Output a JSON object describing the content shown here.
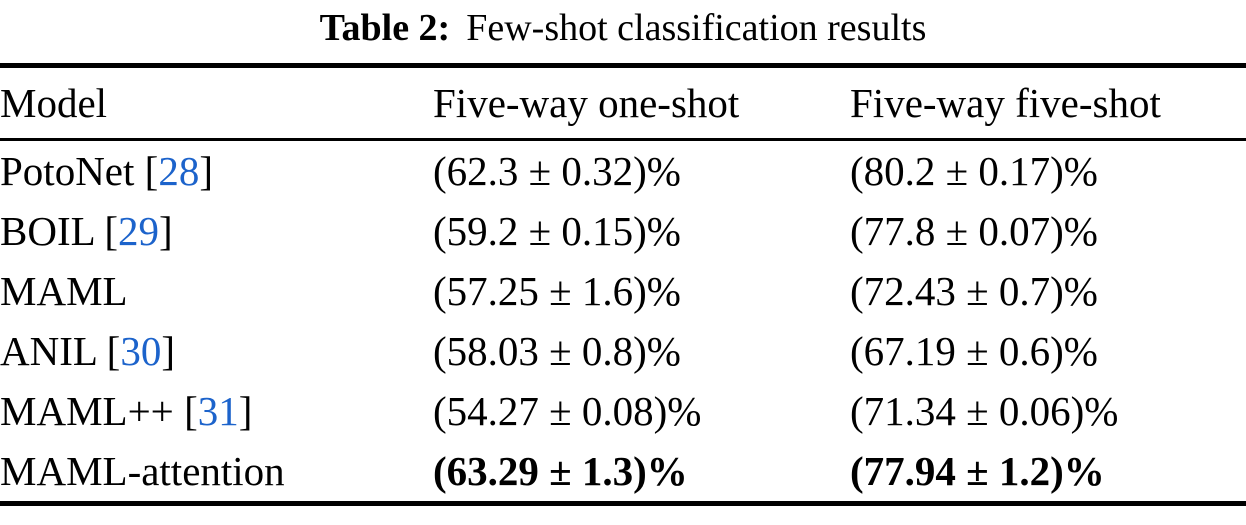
{
  "caption": {
    "label": "Table 2:",
    "title": "Few-shot classification results"
  },
  "colors": {
    "text": "#000000",
    "citation_blue": "#1c63cb",
    "background": "#ffffff"
  },
  "table": {
    "headers": [
      "Model",
      "Five-way one-shot",
      "Five-way five-shot"
    ],
    "rows": [
      {
        "model": "PotoNet",
        "lb": "[",
        "cite": "28",
        "rb": "]",
        "one_shot": "(62.3 ± 0.32)%",
        "five_shot": "(80.2 ± 0.17)%"
      },
      {
        "model": "BOIL",
        "lb": "[",
        "cite": "29",
        "rb": "]",
        "one_shot": "(59.2 ± 0.15)%",
        "five_shot": "(77.8 ± 0.07)%"
      },
      {
        "model": "MAML",
        "one_shot": "(57.25 ± 1.6)%",
        "five_shot": "(72.43 ± 0.7)%"
      },
      {
        "model": "ANIL",
        "lb": "[",
        "cite": "30",
        "rb": "]",
        "one_shot": "(58.03 ± 0.8)%",
        "five_shot": "(67.19 ± 0.6)%"
      },
      {
        "model": "MAML++",
        "lb": "[",
        "cite": "31",
        "rb": "]",
        "one_shot": "(54.27 ± 0.08)%",
        "five_shot": "(71.34 ± 0.06)%"
      },
      {
        "model": "MAML-attention",
        "one_shot": "(63.29 ± 1.3)%",
        "five_shot": "(77.94 ± 1.2)%",
        "emphasis": "bold"
      }
    ]
  }
}
